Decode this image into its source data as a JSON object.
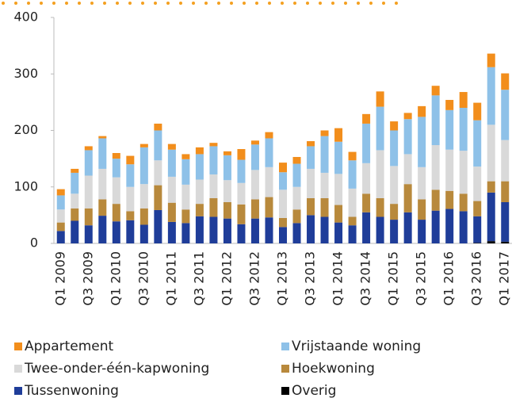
{
  "chart_data": {
    "type": "stacked_bar",
    "categories": [
      "Q1 2009",
      null,
      "Q3 2009",
      null,
      "Q1 2010",
      null,
      "Q3 2010",
      null,
      "Q1 2011",
      null,
      "Q3 2011",
      null,
      "Q1 2012",
      null,
      "Q3 2012",
      null,
      "Q1 2013",
      null,
      "Q3 2013",
      null,
      "Q1 2014",
      null,
      "Q3 2014",
      null,
      "Q1 2015",
      null,
      "Q3 2015",
      null,
      "Q1 2016",
      null,
      "Q3 2016",
      null,
      "Q1 2017"
    ],
    "series": [
      {
        "name": "Overig",
        "color": "#000000",
        "values": [
          0,
          0,
          0,
          0,
          0,
          0,
          0,
          0,
          0,
          0,
          0,
          0,
          0,
          0,
          0,
          0,
          0,
          0,
          0,
          0,
          0,
          0,
          0,
          0,
          0,
          0,
          0,
          0,
          0,
          0,
          1,
          4,
          3
        ]
      },
      {
        "name": "Tussenwoning",
        "color": "#1f3d99",
        "values": [
          22,
          40,
          32,
          49,
          39,
          41,
          33,
          59,
          38,
          36,
          48,
          47,
          44,
          34,
          44,
          46,
          29,
          36,
          50,
          47,
          37,
          32,
          55,
          47,
          42,
          55,
          42,
          58,
          61,
          57,
          47,
          86,
          70
        ]
      },
      {
        "name": "Hoekwoning",
        "color": "#b8893c",
        "values": [
          15,
          22,
          30,
          29,
          31,
          16,
          29,
          44,
          34,
          24,
          22,
          33,
          29,
          35,
          34,
          36,
          16,
          24,
          30,
          33,
          31,
          15,
          33,
          33,
          28,
          50,
          36,
          37,
          32,
          31,
          27,
          20,
          37
        ]
      },
      {
        "name": "Twee-onder-één-kapwoning",
        "color": "#d9d9d9",
        "values": [
          23,
          26,
          58,
          54,
          47,
          43,
          43,
          44,
          46,
          44,
          43,
          42,
          39,
          38,
          52,
          53,
          50,
          40,
          52,
          45,
          55,
          50,
          54,
          85,
          67,
          53,
          57,
          79,
          73,
          76,
          61,
          100,
          73
        ]
      },
      {
        "name": "Vrijstaande woning",
        "color": "#8ec1e8",
        "values": [
          25,
          37,
          45,
          54,
          33,
          40,
          65,
          53,
          48,
          45,
          45,
          50,
          44,
          41,
          45,
          51,
          31,
          41,
          40,
          65,
          57,
          50,
          70,
          77,
          63,
          62,
          89,
          88,
          70,
          76,
          82,
          102,
          89
        ]
      },
      {
        "name": "Appartement",
        "color": "#f28e1c",
        "values": [
          11,
          7,
          7,
          4,
          10,
          15,
          6,
          12,
          10,
          9,
          12,
          6,
          7,
          19,
          7,
          11,
          17,
          12,
          9,
          10,
          24,
          15,
          17,
          27,
          16,
          11,
          19,
          17,
          18,
          28,
          31,
          24,
          29
        ]
      }
    ],
    "ylim": [
      0,
      400
    ],
    "yticks": [
      0,
      100,
      200,
      300,
      400
    ]
  }
}
